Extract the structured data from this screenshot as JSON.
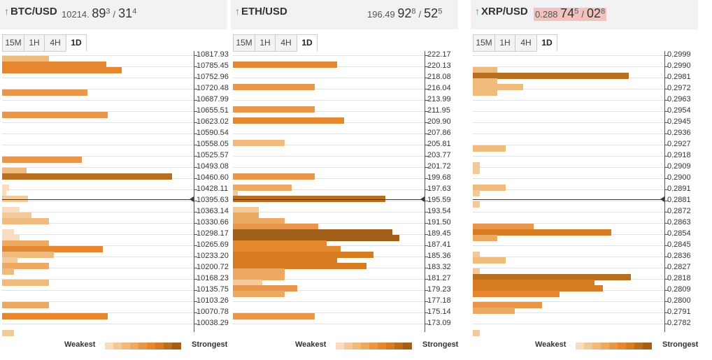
{
  "colors": {
    "levels": [
      "#f7dcbf",
      "#f2ca9a",
      "#eebb7c",
      "#eba961",
      "#e7964a",
      "#e5872e",
      "#d77b20",
      "#b86e1f",
      "#a15f1a"
    ],
    "grid": "#e2e2e2",
    "current_price_line": "#2c3e50",
    "up_arrow": "#3d9a4d"
  },
  "legend": {
    "weakest": "Weakest",
    "strongest": "Strongest"
  },
  "panels": [
    {
      "pair": "BTC/USD",
      "price_prefix": "10214.",
      "price_big1": "89",
      "price_sup1": "3",
      "price_sep": "/",
      "price_big2": "31",
      "price_sup2": "4",
      "highlight": false,
      "tabs": [
        "15M",
        "1H",
        "4H",
        "1D"
      ],
      "active_tab": "1D",
      "current_price_level": 12.9,
      "levels": [
        "10817.93",
        "10785.45",
        "10752.96",
        "10720.48",
        "10687.99",
        "10655.51",
        "10623.02",
        "10590.54",
        "10558.05",
        "10525.57",
        "10493.08",
        "10460.60",
        "10428.11",
        "10395.63",
        "10363.14",
        "10330.66",
        "10298.17",
        "10265.69",
        "10233.20",
        "10200.72",
        "10168.23",
        "10135.75",
        "10103.26",
        "10070.78",
        "10038.29"
      ],
      "bars": [
        {
          "level": 0.3,
          "value": 0.27,
          "s": 2
        },
        {
          "level": 0.8,
          "value": 0.6,
          "s": 5
        },
        {
          "level": 1.3,
          "value": 0.69,
          "s": 5
        },
        {
          "level": 3.3,
          "value": 0.49,
          "s": 4
        },
        {
          "level": 5.3,
          "value": 0.61,
          "s": 4
        },
        {
          "level": 9.3,
          "value": 0.46,
          "s": 4
        },
        {
          "level": 10.3,
          "value": 0.14,
          "s": 2
        },
        {
          "level": 10.8,
          "value": 0.98,
          "s": 7
        },
        {
          "level": 11.8,
          "value": 0.04,
          "s": 0
        },
        {
          "level": 12.3,
          "value": 0.02,
          "s": 0
        },
        {
          "level": 12.8,
          "value": 0.15,
          "s": 1
        },
        {
          "level": 13.8,
          "value": 0.1,
          "s": 0
        },
        {
          "level": 14.3,
          "value": 0.17,
          "s": 1
        },
        {
          "level": 14.8,
          "value": 0.27,
          "s": 2
        },
        {
          "level": 15.8,
          "value": 0.07,
          "s": 0
        },
        {
          "level": 16.3,
          "value": 0.1,
          "s": 0
        },
        {
          "level": 16.8,
          "value": 0.27,
          "s": 3
        },
        {
          "level": 17.3,
          "value": 0.58,
          "s": 5
        },
        {
          "level": 17.8,
          "value": 0.3,
          "s": 2
        },
        {
          "level": 18.3,
          "value": 0.09,
          "s": 1
        },
        {
          "level": 18.8,
          "value": 0.27,
          "s": 3
        },
        {
          "level": 19.3,
          "value": 0.07,
          "s": 2
        },
        {
          "level": 20.3,
          "value": 0.27,
          "s": 2
        },
        {
          "level": 22.3,
          "value": 0.27,
          "s": 3
        },
        {
          "level": 23.3,
          "value": 0.61,
          "s": 5
        },
        {
          "level": 24.8,
          "value": 0.07,
          "s": 1
        }
      ]
    },
    {
      "pair": "ETH/USD",
      "price_prefix": "196.49",
      "price_big1": "92",
      "price_sup1": "8",
      "price_sep": "/",
      "price_big2": "52",
      "price_sup2": "5",
      "highlight": false,
      "tabs": [
        "15M",
        "1H",
        "4H",
        "1D"
      ],
      "active_tab": "1D",
      "current_price_level": 12.9,
      "levels": [
        "222.17",
        "220.13",
        "218.08",
        "216.04",
        "213.99",
        "211.95",
        "209.90",
        "207.86",
        "205.81",
        "203.77",
        "201.72",
        "199.68",
        "197.63",
        "195.59",
        "193.54",
        "191.50",
        "189.45",
        "187.41",
        "185.36",
        "183.32",
        "181.27",
        "179.23",
        "177.18",
        "175.14",
        "173.09"
      ],
      "bars": [
        {
          "level": 0.8,
          "value": 0.6,
          "s": 5
        },
        {
          "level": 2.8,
          "value": 0.47,
          "s": 4
        },
        {
          "level": 4.8,
          "value": 0.47,
          "s": 4
        },
        {
          "level": 5.8,
          "value": 0.64,
          "s": 5
        },
        {
          "level": 7.8,
          "value": 0.3,
          "s": 2
        },
        {
          "level": 10.8,
          "value": 0.47,
          "s": 4
        },
        {
          "level": 11.8,
          "value": 0.34,
          "s": 3
        },
        {
          "level": 12.3,
          "value": 0.03,
          "s": 1
        },
        {
          "level": 12.8,
          "value": 0.88,
          "s": 7
        },
        {
          "level": 13.8,
          "value": 0.15,
          "s": 1
        },
        {
          "level": 14.3,
          "value": 0.15,
          "s": 3
        },
        {
          "level": 14.8,
          "value": 0.3,
          "s": 3
        },
        {
          "level": 15.3,
          "value": 0.49,
          "s": 4
        },
        {
          "level": 15.8,
          "value": 0.92,
          "s": 8
        },
        {
          "level": 16.3,
          "value": 0.96,
          "s": 8
        },
        {
          "level": 16.8,
          "value": 0.54,
          "s": 5
        },
        {
          "level": 17.3,
          "value": 0.62,
          "s": 5
        },
        {
          "level": 17.8,
          "value": 0.81,
          "s": 6
        },
        {
          "level": 18.3,
          "value": 0.6,
          "s": 6
        },
        {
          "level": 18.8,
          "value": 0.77,
          "s": 6
        },
        {
          "level": 19.3,
          "value": 0.3,
          "s": 3
        },
        {
          "level": 19.8,
          "value": 0.3,
          "s": 3
        },
        {
          "level": 20.3,
          "value": 0.17,
          "s": 1
        },
        {
          "level": 20.8,
          "value": 0.37,
          "s": 4
        },
        {
          "level": 21.3,
          "value": 0.3,
          "s": 3
        },
        {
          "level": 23.3,
          "value": 0.47,
          "s": 4
        }
      ]
    },
    {
      "pair": "XRP/USD",
      "price_prefix": "0.288",
      "price_big1": "74",
      "price_sup1": "5",
      "price_sep": "/",
      "price_big2": "02",
      "price_sup2": "8",
      "highlight": true,
      "tabs": [
        "15M",
        "1H",
        "4H",
        "1D"
      ],
      "active_tab": "1D",
      "current_price_level": 12.9,
      "levels": [
        "0.2999",
        "0.2990",
        "0.2981",
        "0.2972",
        "0.2963",
        "0.2954",
        "0.2945",
        "0.2936",
        "0.2927",
        "0.2918",
        "0.2909",
        "0.2900",
        "0.2891",
        "0.2881",
        "0.2872",
        "0.2863",
        "0.2854",
        "0.2845",
        "0.2836",
        "0.2827",
        "0.2818",
        "0.2809",
        "0.2800",
        "0.2791",
        "0.2782"
      ],
      "bars": [
        {
          "level": 1.3,
          "value": 0.14,
          "s": 2
        },
        {
          "level": 1.8,
          "value": 0.9,
          "s": 7
        },
        {
          "level": 2.3,
          "value": 0.14,
          "s": 2
        },
        {
          "level": 2.8,
          "value": 0.29,
          "s": 2
        },
        {
          "level": 3.3,
          "value": 0.14,
          "s": 2
        },
        {
          "level": 8.3,
          "value": 0.19,
          "s": 2
        },
        {
          "level": 9.8,
          "value": 0.04,
          "s": 1
        },
        {
          "level": 10.3,
          "value": 0.04,
          "s": 1
        },
        {
          "level": 11.8,
          "value": 0.19,
          "s": 2
        },
        {
          "level": 12.3,
          "value": 0.04,
          "s": 1
        },
        {
          "level": 13.3,
          "value": 0.04,
          "s": 1
        },
        {
          "level": 15.3,
          "value": 0.35,
          "s": 4
        },
        {
          "level": 15.8,
          "value": 0.8,
          "s": 6
        },
        {
          "level": 16.3,
          "value": 0.14,
          "s": 3
        },
        {
          "level": 17.8,
          "value": 0.04,
          "s": 1
        },
        {
          "level": 18.3,
          "value": 0.19,
          "s": 2
        },
        {
          "level": 19.3,
          "value": 0.04,
          "s": 1
        },
        {
          "level": 19.8,
          "value": 0.91,
          "s": 7
        },
        {
          "level": 20.3,
          "value": 0.7,
          "s": 6
        },
        {
          "level": 20.8,
          "value": 0.75,
          "s": 6
        },
        {
          "level": 21.3,
          "value": 0.5,
          "s": 5
        },
        {
          "level": 22.3,
          "value": 0.4,
          "s": 4
        },
        {
          "level": 22.8,
          "value": 0.24,
          "s": 3
        },
        {
          "level": 24.8,
          "value": 0.04,
          "s": 1
        }
      ]
    }
  ]
}
